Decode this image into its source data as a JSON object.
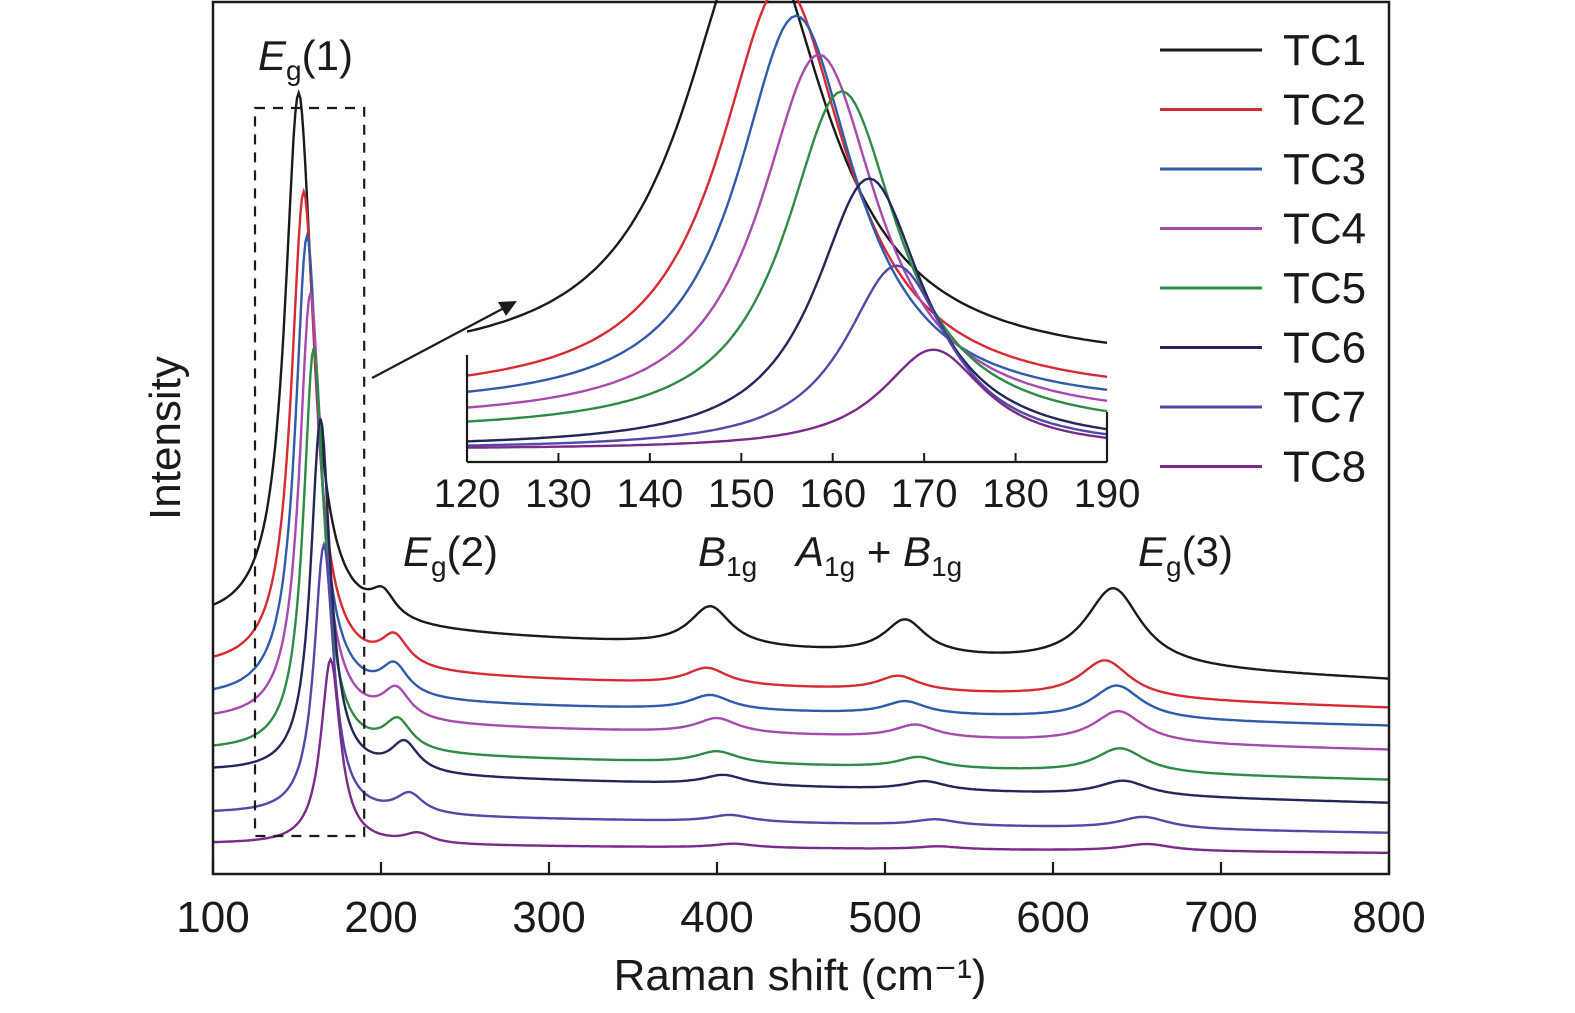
{
  "chart_data": [
    {
      "type": "line",
      "xlabel": "Raman shift (cm⁻¹)",
      "ylabel": "Intensity",
      "xlim": [
        100,
        800
      ],
      "xticks": [
        "100",
        "200",
        "300",
        "400",
        "500",
        "600",
        "700",
        "800"
      ],
      "y_ticks_shown": false,
      "grid": false,
      "legend_placement": "top-right",
      "peak_annotations": [
        {
          "main": "E",
          "sub": "g",
          "suffix": "(1)",
          "x": 152
        },
        {
          "main": "E",
          "sub": "g",
          "suffix": "(2)",
          "x": 205
        },
        {
          "main": "B",
          "sub": "1g",
          "suffix": "",
          "x": 396
        },
        {
          "main": "A",
          "sub": "1g",
          "mid": " + ",
          "main2": "B",
          "sub2": "1g",
          "x": 512
        },
        {
          "main": "E",
          "sub": "g",
          "suffix": "(3)",
          "x": 638
        }
      ],
      "baseline_model": "linear offset y(x) = base_start + (base_end - base_start) * (x - 100) / 700, plus Lorentzian peaks; y in arbitrary units",
      "series": [
        {
          "name": "TC1",
          "color": "#1a1a1a",
          "base_start": 2.35,
          "base_end": 1.8,
          "peaks": [
            [
              151,
              5.35,
              10
            ],
            [
              201,
              0.25,
              9
            ],
            [
              396,
              0.4,
              15
            ],
            [
              512,
              0.35,
              15
            ],
            [
              636,
              0.78,
              20
            ]
          ]
        },
        {
          "name": "TC2",
          "color": "#d62a34",
          "base_start": 1.9,
          "base_end": 1.52,
          "peaks": [
            [
              154,
              4.8,
              9
            ],
            [
              208,
              0.3,
              10
            ],
            [
              394,
              0.17,
              15
            ],
            [
              508,
              0.15,
              15
            ],
            [
              631,
              0.38,
              18
            ]
          ]
        },
        {
          "name": "TC3",
          "color": "#2f5ba8",
          "base_start": 1.6,
          "base_end": 1.34,
          "peaks": [
            [
              156,
              4.65,
              8.5
            ],
            [
              208,
              0.3,
              10
            ],
            [
              396,
              0.15,
              15
            ],
            [
              512,
              0.13,
              15
            ],
            [
              638,
              0.34,
              18
            ]
          ]
        },
        {
          "name": "TC4",
          "color": "#a64aae",
          "base_start": 1.38,
          "base_end": 1.1,
          "peaks": [
            [
              158,
              4.3,
              8
            ],
            [
              209,
              0.3,
              10
            ],
            [
              400,
              0.15,
              15
            ],
            [
              518,
              0.13,
              15
            ],
            [
              639,
              0.32,
              18
            ]
          ]
        },
        {
          "name": "TC5",
          "color": "#2f8a45",
          "base_start": 1.08,
          "base_end": 0.8,
          "peaks": [
            [
              160,
              4.05,
              7.5
            ],
            [
              210,
              0.3,
              10
            ],
            [
              400,
              0.12,
              15
            ],
            [
              520,
              0.11,
              15
            ],
            [
              640,
              0.25,
              18
            ]
          ]
        },
        {
          "name": "TC6",
          "color": "#222659",
          "base_start": 0.88,
          "base_end": 0.57,
          "peaks": [
            [
              164,
              3.55,
              7
            ],
            [
              214,
              0.3,
              10
            ],
            [
              404,
              0.1,
              15
            ],
            [
              524,
              0.09,
              15
            ],
            [
              642,
              0.15,
              18
            ]
          ]
        },
        {
          "name": "TC7",
          "color": "#5148a8",
          "base_start": 0.46,
          "base_end": 0.27,
          "peaks": [
            [
              166,
              2.7,
              7
            ],
            [
              217,
              0.2,
              10
            ],
            [
              408,
              0.07,
              15
            ],
            [
              530,
              0.06,
              15
            ],
            [
              654,
              0.12,
              18
            ]
          ]
        },
        {
          "name": "TC8",
          "color": "#7a2a88",
          "base_start": 0.16,
          "base_end": 0.07,
          "peaks": [
            [
              170,
              1.85,
              7
            ],
            [
              222,
              0.1,
              10
            ],
            [
              410,
              0.04,
              15
            ],
            [
              532,
              0.03,
              15
            ],
            [
              656,
              0.07,
              18
            ]
          ]
        }
      ]
    },
    {
      "type": "line",
      "role": "inset (zoom of dashed region around Eɡ(1))",
      "xlim": [
        120,
        190
      ],
      "xticks": [
        "120",
        "130",
        "140",
        "150",
        "160",
        "170",
        "180",
        "190"
      ],
      "zoom_region_x": [
        125,
        190
      ],
      "series": [
        {
          "name": "TC1",
          "center": 151.5,
          "amp": 4.2,
          "width": 15,
          "base": 0.9
        },
        {
          "name": "TC2",
          "center": 154.5,
          "amp": 3.95,
          "width": 13.5,
          "base": 0.6
        },
        {
          "name": "TC3",
          "center": 156,
          "amp": 3.75,
          "width": 12.5,
          "base": 0.5
        },
        {
          "name": "TC4",
          "center": 158.5,
          "amp": 3.5,
          "width": 12.5,
          "base": 0.38
        },
        {
          "name": "TC5",
          "center": 161,
          "amp": 3.25,
          "width": 12,
          "base": 0.28
        },
        {
          "name": "TC6",
          "center": 164,
          "amp": 2.57,
          "width": 11.5,
          "base": 0.13
        },
        {
          "name": "TC7",
          "center": 167,
          "amp": 1.75,
          "width": 11,
          "base": 0.12
        },
        {
          "name": "TC8",
          "center": 171,
          "amp": 0.95,
          "width": 11,
          "base": 0.12
        }
      ]
    }
  ]
}
